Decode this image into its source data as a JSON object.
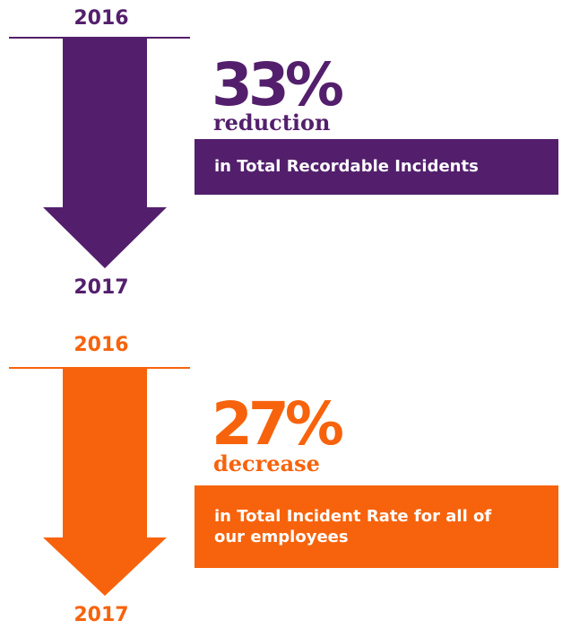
{
  "stats": [
    {
      "from_year": "2016",
      "to_year": "2017",
      "percent": "33%",
      "change_word": "reduction",
      "description": "in Total Recordable Incidents",
      "color": "#531f6c"
    },
    {
      "from_year": "2016",
      "to_year": "2017",
      "percent": "27%",
      "change_word": "decrease",
      "description": "in Total Incident Rate for all of our employees",
      "color": "#f7630c"
    }
  ]
}
